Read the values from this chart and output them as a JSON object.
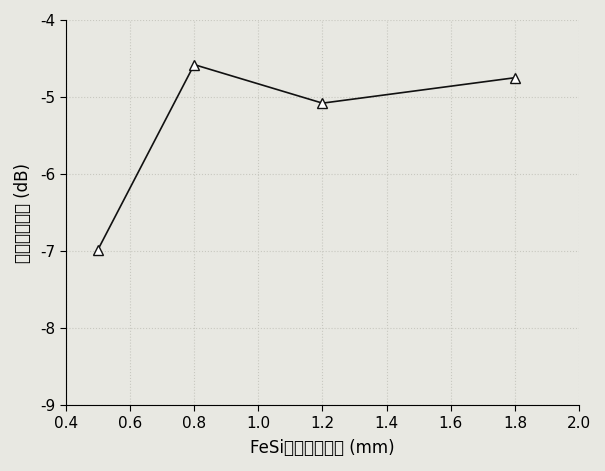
{
  "x": [
    0.5,
    0.8,
    1.2,
    1.8
  ],
  "y": [
    -6.98,
    -4.58,
    -5.08,
    -4.75
  ],
  "xlabel": "FeSi隐身涂层厚度 (mm)",
  "ylabel": "太赫兹反射率 (dB)",
  "xlim": [
    0.4,
    2.0
  ],
  "ylim": [
    -9,
    -4
  ],
  "xticks": [
    0.4,
    0.6,
    0.8,
    1.0,
    1.2,
    1.4,
    1.6,
    1.8,
    2.0
  ],
  "yticks": [
    -9,
    -8,
    -7,
    -6,
    -5,
    -4
  ],
  "background_color": "#e8e8e2",
  "line_color": "#111111",
  "marker": "^",
  "marker_size": 7,
  "grid_color": "#c8c8c0",
  "grid_style": "dotted"
}
